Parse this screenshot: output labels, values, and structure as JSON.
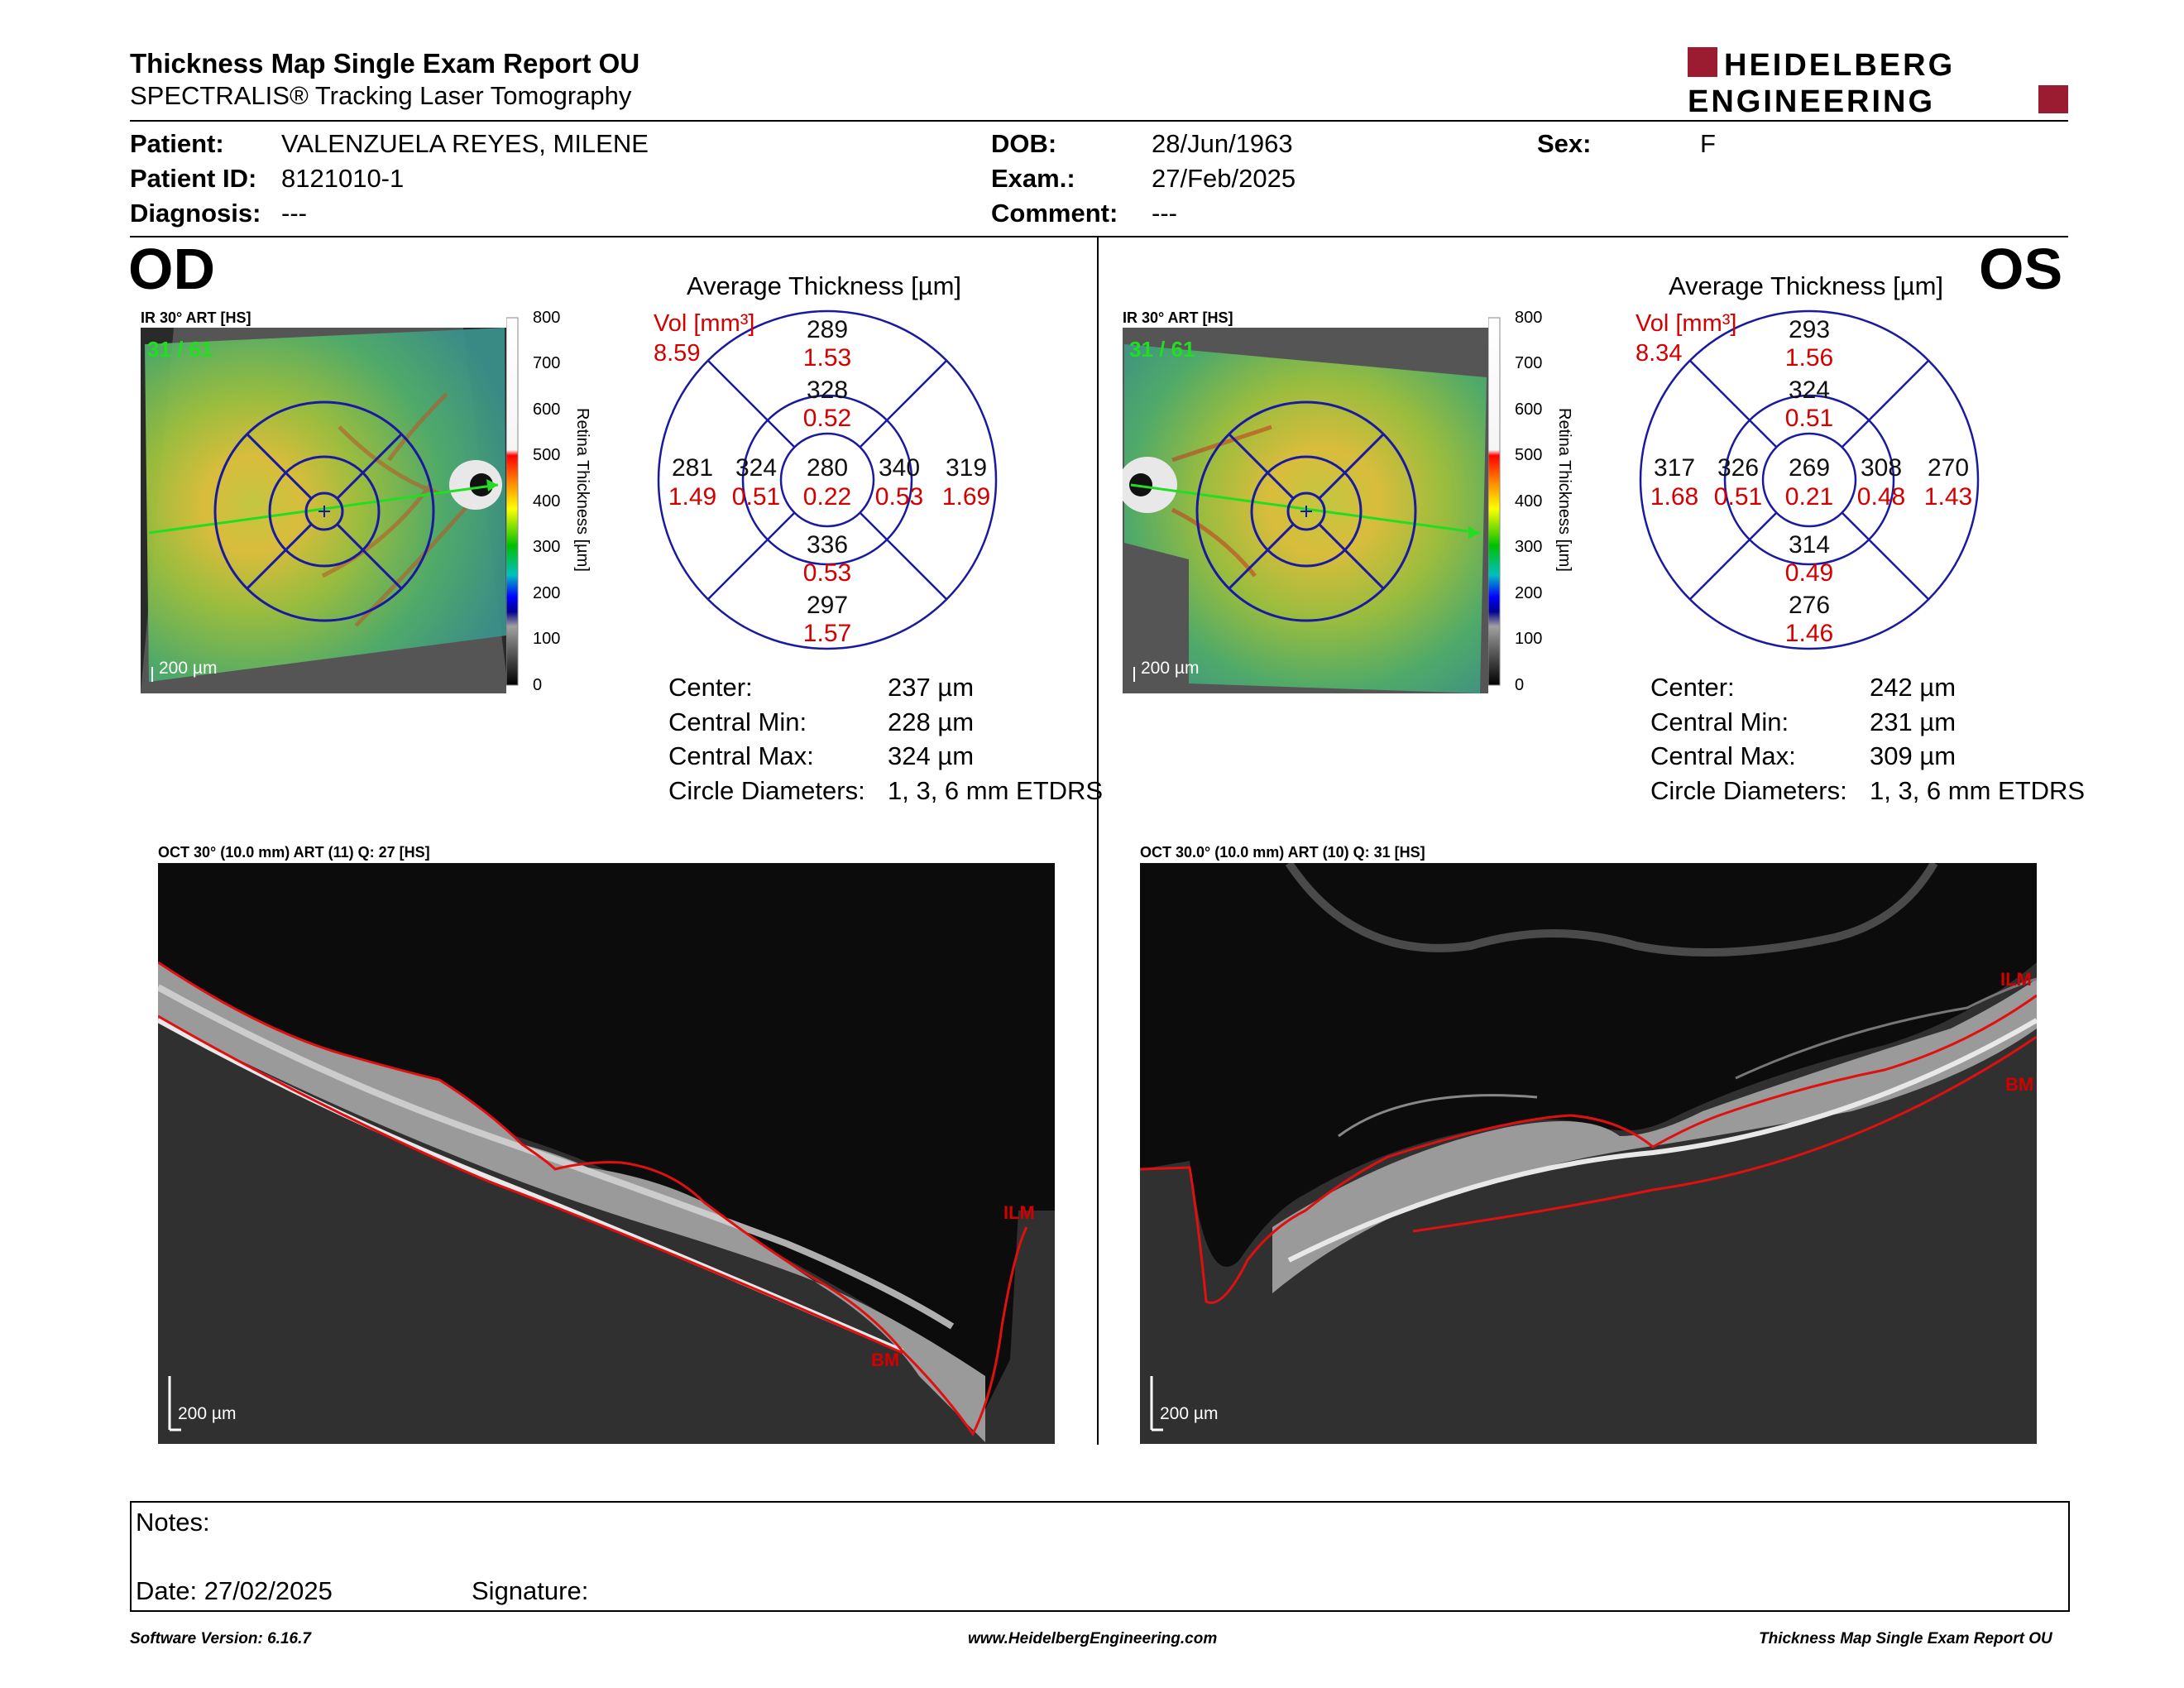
{
  "header": {
    "title": "Thickness Map Single Exam Report OU",
    "subtitle": "SPECTRALIS® Tracking Laser Tomography",
    "logo_line1": "HEIDELBERG",
    "logo_line2": "ENGINEERING"
  },
  "patient": {
    "name_label": "Patient:",
    "name": "VALENZUELA REYES, MILENE",
    "id_label": "Patient ID:",
    "id": "8121010-1",
    "diagnosis_label": "Diagnosis:",
    "diagnosis": "---",
    "dob_label": "DOB:",
    "dob": "28/Jun/1963",
    "exam_label": "Exam.:",
    "exam": "27/Feb/2025",
    "comment_label": "Comment:",
    "comment": "---",
    "sex_label": "Sex:",
    "sex": "F"
  },
  "od": {
    "eye": "OD",
    "fundus_label": "IR 30° ART [HS]",
    "frame_counter": "31 / 61",
    "scale_label": "200 µm",
    "grid": {
      "title": "Average Thickness [µm]",
      "vol_label": "Vol [mm³]",
      "vol_total": "8.59",
      "center": {
        "t": "280",
        "v": "0.22"
      },
      "inner_top": {
        "t": "328",
        "v": "0.52"
      },
      "inner_bottom": {
        "t": "336",
        "v": "0.53"
      },
      "inner_left": {
        "t": "324",
        "v": "0.51"
      },
      "inner_right": {
        "t": "340",
        "v": "0.53"
      },
      "outer_top": {
        "t": "289",
        "v": "1.53"
      },
      "outer_bottom": {
        "t": "297",
        "v": "1.57"
      },
      "outer_left": {
        "t": "281",
        "v": "1.49"
      },
      "outer_right": {
        "t": "319",
        "v": "1.69"
      }
    },
    "stats": {
      "center_label": "Center:",
      "center": "237 µm",
      "min_label": "Central Min:",
      "min": "228 µm",
      "max_label": "Central Max:",
      "max": "324 µm",
      "diam_label": "Circle Diameters:",
      "diam": "1, 3, 6 mm ETDRS"
    },
    "oct_label": "OCT 30° (10.0 mm) ART (11) Q: 27 [HS]",
    "oct_ilm": "ILM",
    "oct_bm": "BM",
    "oct_scale": "200 µm"
  },
  "os": {
    "eye": "OS",
    "fundus_label": "IR 30° ART [HS]",
    "frame_counter": "31 / 61",
    "scale_label": "200 µm",
    "grid": {
      "title": "Average Thickness [µm]",
      "vol_label": "Vol [mm³]",
      "vol_total": "8.34",
      "center": {
        "t": "269",
        "v": "0.21"
      },
      "inner_top": {
        "t": "324",
        "v": "0.51"
      },
      "inner_bottom": {
        "t": "314",
        "v": "0.49"
      },
      "inner_left": {
        "t": "326",
        "v": "0.51"
      },
      "inner_right": {
        "t": "308",
        "v": "0.48"
      },
      "outer_top": {
        "t": "293",
        "v": "1.56"
      },
      "outer_bottom": {
        "t": "276",
        "v": "1.46"
      },
      "outer_left": {
        "t": "317",
        "v": "1.68"
      },
      "outer_right": {
        "t": "270",
        "v": "1.43"
      }
    },
    "stats": {
      "center_label": "Center:",
      "center": "242 µm",
      "min_label": "Central Min:",
      "min": "231 µm",
      "max_label": "Central Max:",
      "max": "309 µm",
      "diam_label": "Circle Diameters:",
      "diam": "1, 3, 6 mm ETDRS"
    },
    "oct_label": "OCT 30.0° (10.0 mm) ART (10) Q: 31 [HS]",
    "oct_ilm": "ILM",
    "oct_bm": "BM",
    "oct_scale": "200 µm"
  },
  "colorbar": {
    "ticks": [
      "800",
      "700",
      "600",
      "500",
      "400",
      "300",
      "200",
      "100",
      "0"
    ],
    "axis_label": "Retina Thickness [µm]"
  },
  "notes": {
    "notes_label": "Notes:",
    "date_label": "Date: 27/02/2025",
    "signature_label": "Signature:"
  },
  "footer": {
    "software": "Software Version: 6.16.7",
    "website": "www.HeidelbergEngineering.com",
    "report_name": "Thickness Map Single Exam Report OU"
  },
  "colors": {
    "thickness_red": "#d40000",
    "grid_blue": "#1a1aa0",
    "logo_red": "#9b1b30",
    "scan_green": "#22dd22"
  }
}
